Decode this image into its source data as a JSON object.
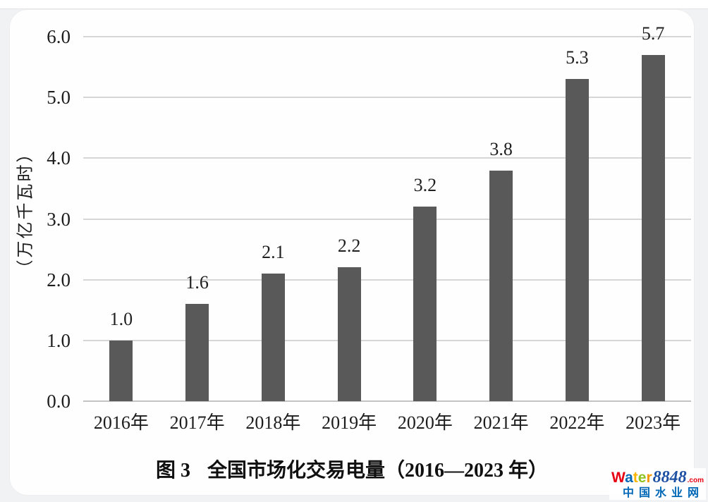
{
  "chart_data": {
    "type": "bar",
    "title": "图 3　全国市场化交易电量（2016—2023 年）",
    "ylabel": "（万亿千瓦时）",
    "xlabel": "",
    "categories": [
      "2016年",
      "2017年",
      "2018年",
      "2019年",
      "2020年",
      "2021年",
      "2022年",
      "2023年"
    ],
    "values": [
      1.0,
      1.6,
      2.1,
      2.2,
      3.2,
      3.8,
      5.3,
      5.7
    ],
    "value_labels": [
      "1.0",
      "1.6",
      "2.1",
      "2.2",
      "3.2",
      "3.8",
      "5.3",
      "5.7"
    ],
    "yticks": [
      "0.0",
      "1.0",
      "2.0",
      "3.0",
      "4.0",
      "5.0",
      "6.0"
    ],
    "ylim": [
      0,
      6.0
    ],
    "grid": "horizontal",
    "legend": "none",
    "bar_color": "#595959",
    "grid_color": "#d6d6d6",
    "baseline_color": "#c2c2c2",
    "text_color": "#1c1c1c"
  },
  "caption": {
    "figure_label": "图 3",
    "text": "全国市场化交易电量（2016—2023 年）"
  },
  "watermark": {
    "brand_letters": [
      {
        "ch": "W",
        "color": "#e60012"
      },
      {
        "ch": "a",
        "color": "#0068b7"
      },
      {
        "ch": "t",
        "color": "#f8b500"
      },
      {
        "ch": "e",
        "color": "#8fc31f"
      },
      {
        "ch": "r",
        "color": "#f39800"
      }
    ],
    "brand_number": "8848",
    "brand_number_color": "#1d50a2",
    "brand_tld": ".com",
    "brand_tld_color": "#e60012",
    "subtitle": "中国水业网",
    "subtitle_color": "#0068b7"
  }
}
